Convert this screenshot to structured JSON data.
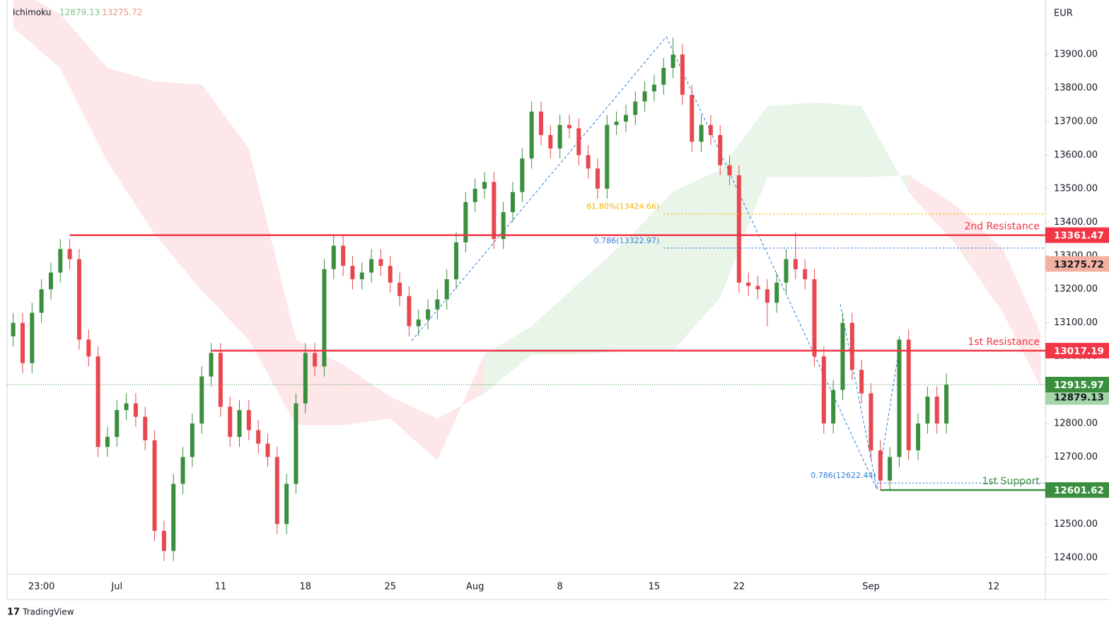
{
  "chart_data": {
    "type": "candlestick",
    "indicator": {
      "name": "Ichimoku",
      "values": [
        12879.13,
        13275.72
      ],
      "colors": [
        "#7dbf85",
        "#e9967a"
      ],
      "tag_colors": [
        "#a5d6a7",
        "#f4b0a0"
      ]
    },
    "currency": "EUR",
    "watermark": "TradingView",
    "categories": [
      null,
      null,
      null,
      "23:00",
      null,
      null,
      null,
      null,
      null,
      null,
      null,
      "Jul",
      null,
      null,
      null,
      null,
      null,
      null,
      null,
      null,
      null,
      null,
      "11",
      null,
      null,
      null,
      null,
      null,
      null,
      null,
      null,
      "18",
      null,
      null,
      null,
      null,
      null,
      null,
      null,
      null,
      "25",
      null,
      null,
      null,
      null,
      null,
      null,
      null,
      null,
      "Aug",
      null,
      null,
      null,
      null,
      null,
      null,
      null,
      null,
      "8",
      null,
      null,
      null,
      null,
      null,
      null,
      null,
      null,
      null,
      "15",
      null,
      null,
      null,
      null,
      null,
      null,
      null,
      null,
      "22",
      null,
      null,
      null,
      null,
      null,
      null,
      null,
      null,
      null,
      null,
      null,
      null,
      null,
      "Sep",
      null,
      null,
      null,
      null,
      null,
      null,
      null,
      null,
      null,
      null,
      null,
      null,
      "12",
      null,
      null,
      null,
      null,
      null
    ],
    "open": [
      13060,
      13100,
      12980,
      13130,
      13200,
      13250,
      13320,
      13290,
      13050,
      13000,
      12730,
      12760,
      12840,
      12860,
      12820,
      12750,
      12480,
      12420,
      12620,
      12700,
      12800,
      12940,
      13010,
      12850,
      12760,
      12840,
      12780,
      12740,
      12700,
      12500,
      12620,
      12860,
      13010,
      12970,
      13260,
      13330,
      13270,
      13230,
      13250,
      13290,
      13270,
      13220,
      13180,
      13090,
      13110,
      13140,
      13170,
      13230,
      13340,
      13460,
      13500,
      13520,
      13350,
      13430,
      13490,
      13590,
      13730,
      13660,
      13620,
      13690,
      13680,
      13600,
      13560,
      13500,
      13690,
      13700,
      13720,
      13760,
      13790,
      13810,
      13860,
      13900,
      13780,
      13640,
      13690,
      13660,
      13570,
      13540,
      13220,
      13210,
      13200,
      13160,
      13220,
      13290,
      13260,
      13230,
      13000,
      12800,
      12900,
      13100,
      12960,
      12890,
      12720,
      12630,
      12700,
      13050,
      12720,
      12800,
      12880,
      12800,
      null,
      null,
      null,
      null,
      null,
      null,
      null,
      null,
      null,
      null
    ],
    "high": [
      13130,
      13130,
      13160,
      13230,
      13280,
      13350,
      13350,
      13320,
      13080,
      13030,
      12790,
      12870,
      12890,
      12890,
      12850,
      12780,
      12510,
      12650,
      12730,
      12830,
      12970,
      13040,
      13040,
      12880,
      12870,
      12870,
      12810,
      12770,
      12730,
      12650,
      12890,
      13040,
      13040,
      13290,
      13360,
      13360,
      13300,
      13280,
      13320,
      13320,
      13300,
      13250,
      13210,
      13140,
      13170,
      13200,
      13260,
      13370,
      13490,
      13530,
      13550,
      13550,
      13460,
      13520,
      13620,
      13760,
      13760,
      13690,
      13720,
      13720,
      13710,
      13630,
      13590,
      13720,
      13730,
      13750,
      13790,
      13820,
      13840,
      13890,
      13950,
      13930,
      13810,
      13720,
      13720,
      13690,
      13600,
      13570,
      13250,
      13240,
      13230,
      13250,
      13320,
      13370,
      13290,
      13260,
      13030,
      12930,
      13130,
      13130,
      12990,
      12920,
      12750,
      12730,
      13060,
      13080,
      12830,
      12910,
      12910,
      12950,
      null,
      null,
      null,
      null,
      null,
      null,
      null,
      null,
      null,
      null
    ],
    "low": [
      13030,
      12950,
      12950,
      13100,
      13170,
      13220,
      13260,
      13020,
      12970,
      12700,
      12700,
      12730,
      12810,
      12790,
      12720,
      12450,
      12390,
      12390,
      12590,
      12670,
      12770,
      12910,
      12820,
      12730,
      12730,
      12750,
      12710,
      12670,
      12470,
      12470,
      12590,
      12830,
      12940,
      12940,
      13230,
      13240,
      13200,
      13200,
      13220,
      13240,
      13190,
      13150,
      13060,
      13060,
      13080,
      13110,
      13140,
      13200,
      13310,
      13430,
      13470,
      13320,
      13320,
      13400,
      13460,
      13560,
      13630,
      13590,
      13590,
      13650,
      13570,
      13530,
      13470,
      13470,
      13660,
      13670,
      13690,
      13730,
      13760,
      13780,
      13830,
      13750,
      13610,
      13610,
      13630,
      13540,
      13510,
      13190,
      13180,
      13170,
      13090,
      13130,
      13190,
      13230,
      13200,
      12970,
      12770,
      12770,
      12870,
      12930,
      12860,
      12690,
      12600,
      12600,
      12670,
      12690,
      12690,
      12770,
      12770,
      12770,
      null,
      null,
      null,
      null,
      null,
      null,
      null,
      null,
      null,
      null
    ],
    "close": [
      13100,
      12980,
      13130,
      13200,
      13250,
      13320,
      13290,
      13050,
      13000,
      12730,
      12760,
      12840,
      12860,
      12820,
      12750,
      12480,
      12420,
      12620,
      12700,
      12800,
      12940,
      13010,
      12850,
      12760,
      12840,
      12780,
      12740,
      12700,
      12500,
      12620,
      12860,
      13010,
      12970,
      13260,
      13330,
      13270,
      13230,
      13250,
      13290,
      13270,
      13220,
      13180,
      13090,
      13110,
      13140,
      13170,
      13230,
      13340,
      13460,
      13500,
      13520,
      13350,
      13430,
      13490,
      13590,
      13730,
      13660,
      13620,
      13690,
      13680,
      13600,
      13560,
      13500,
      13690,
      13700,
      13720,
      13760,
      13790,
      13810,
      13860,
      13900,
      13780,
      13640,
      13690,
      13660,
      13570,
      13540,
      13220,
      13210,
      13200,
      13160,
      13220,
      13290,
      13260,
      13230,
      13000,
      12800,
      12900,
      13100,
      12960,
      12890,
      12720,
      12630,
      12700,
      13050,
      12720,
      12800,
      12880,
      12800,
      12915.97,
      null,
      null,
      null,
      null,
      null,
      null,
      null,
      null,
      null,
      null
    ],
    "up_color": "#3a8f3e",
    "down_color": "#e8474f",
    "last_price_color": "#3a8f3e",
    "cloud": {
      "x": [
        0,
        5,
        10,
        15,
        20,
        25,
        30,
        35,
        40,
        45,
        50,
        55,
        60,
        65,
        70,
        75,
        80,
        85,
        90,
        95,
        100,
        105,
        109
      ],
      "span_a": [
        13980,
        13860,
        13580,
        13365,
        13196,
        13050,
        12795,
        12795,
        12815,
        12690,
        13006,
        13090,
        13218,
        13344,
        13492,
        13556,
        13746,
        13757,
        13746,
        13490,
        13333,
        13130,
        12910
      ],
      "span_b": [
        14100,
        14020,
        13860,
        13820,
        13810,
        13620,
        13050,
        12975,
        12880,
        12815,
        12890,
        13006,
        13006,
        13017,
        13017,
        13175,
        13534,
        13534,
        13534,
        13540,
        13450,
        13320,
        13070
      ],
      "colors": [
        "rgba(76,175,80,0.13)",
        "rgba(242,54,69,0.12)"
      ]
    },
    "levels": [
      {
        "label": "2nd Resistance",
        "value": 13361.47,
        "x_start": 6,
        "color": "#f23645"
      },
      {
        "label": "1st Resistance",
        "value": 13017.19,
        "x_start": 21,
        "color": "#f23645"
      },
      {
        "label": "1st Support",
        "value": 12601.62,
        "x_start": 92,
        "color": "#3a8f3e"
      }
    ],
    "fib_levels": [
      {
        "label": "61.80%(13424.66)",
        "value": 13424.66,
        "x_start": 69,
        "color": "#f5b400"
      },
      {
        "label": "0.786(13322.97)",
        "value": 13322.97,
        "x_start": 69,
        "color": "#2f7fd8"
      },
      {
        "label": "0.786(12622.44)",
        "value": 12622.44,
        "x_start": 92,
        "color": "#2f7fd8"
      }
    ],
    "ylim": [
      12351,
      14052
    ],
    "yticks": [
      {
        "value": 12400,
        "label": "12400.00"
      },
      {
        "value": 12500,
        "label": "12500.00"
      },
      {
        "value": 12600,
        "label": "12600.00"
      },
      {
        "value": 12700,
        "label": "12700.00"
      },
      {
        "value": 12800,
        "label": "12800.00"
      },
      {
        "value": 12900,
        "label": "12900.00"
      },
      {
        "value": 13000,
        "label": "13000.00"
      },
      {
        "value": 13100,
        "label": "13100.00"
      },
      {
        "value": 13200,
        "label": "13200.00"
      },
      {
        "value": 13300,
        "label": "13300.00"
      },
      {
        "value": 13400,
        "label": "13400.00"
      },
      {
        "value": 13500,
        "label": "13500.00"
      },
      {
        "value": 13600,
        "label": "13600.00"
      },
      {
        "value": 13700,
        "label": "13700.00"
      },
      {
        "value": 13800,
        "label": "13800.00"
      },
      {
        "value": 13900,
        "label": "13900.00"
      }
    ]
  }
}
